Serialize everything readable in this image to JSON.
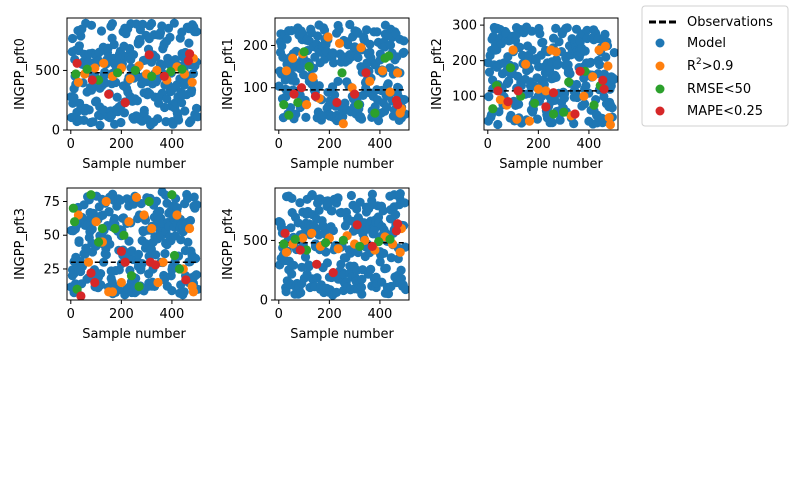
{
  "colors": {
    "observations": "#000000",
    "model": "#1f77b4",
    "r2": "#ff7f0e",
    "rmse": "#2ca02c",
    "mape": "#d62728"
  },
  "legend": {
    "entries": [
      {
        "key": "observations",
        "label": "Observations",
        "marker": "dashed-line"
      },
      {
        "key": "model",
        "label": "Model",
        "marker": "dot"
      },
      {
        "key": "r2",
        "label_main": "R",
        "label_sup": "2",
        "label_rest": ">0.9",
        "marker": "dot"
      },
      {
        "key": "rmse",
        "label": "RMSE<50",
        "marker": "dot"
      },
      {
        "key": "mape",
        "label": "MAPE<0.25",
        "marker": "dot"
      }
    ]
  },
  "chart_data": [
    {
      "type": "scatter",
      "ylabel": "INGPP_pft0",
      "xlabel": "Sample number",
      "xlim": [
        -15,
        515
      ],
      "ylim": [
        0,
        940
      ],
      "xticks": [
        0,
        200,
        400
      ],
      "yticks": [
        0,
        500
      ],
      "observation": 480,
      "model": {
        "n": 260,
        "seed": 11,
        "ymin": 40,
        "ymax": 900
      },
      "r2": [
        [
          30,
          400
        ],
        [
          55,
          470
        ],
        [
          95,
          520
        ],
        [
          130,
          560
        ],
        [
          165,
          450
        ],
        [
          200,
          520
        ],
        [
          235,
          430
        ],
        [
          270,
          540
        ],
        [
          300,
          470
        ],
        [
          340,
          500
        ],
        [
          380,
          420
        ],
        [
          420,
          530
        ],
        [
          450,
          470
        ],
        [
          480,
          400
        ],
        [
          485,
          600
        ]
      ],
      "rmse": [
        [
          20,
          470
        ],
        [
          65,
          510
        ],
        [
          110,
          420
        ],
        [
          185,
          480
        ],
        [
          255,
          500
        ],
        [
          320,
          450
        ],
        [
          395,
          490
        ],
        [
          440,
          510
        ]
      ],
      "mape": [
        [
          25,
          560
        ],
        [
          85,
          420
        ],
        [
          150,
          300
        ],
        [
          215,
          230
        ],
        [
          310,
          630
        ],
        [
          370,
          450
        ],
        [
          465,
          580
        ],
        [
          470,
          640
        ]
      ]
    },
    {
      "type": "scatter",
      "ylabel": "INGPP_pft1",
      "xlabel": "Sample number",
      "xlim": [
        -15,
        515
      ],
      "ylim": [
        0,
        265
      ],
      "xticks": [
        0,
        200,
        400
      ],
      "yticks": [
        100,
        200
      ],
      "observation": 95,
      "model": {
        "n": 260,
        "seed": 23,
        "ymin": 20,
        "ymax": 250
      },
      "r2": [
        [
          30,
          140
        ],
        [
          55,
          170
        ],
        [
          95,
          180
        ],
        [
          135,
          125
        ],
        [
          160,
          75
        ],
        [
          195,
          220
        ],
        [
          240,
          205
        ],
        [
          255,
          15
        ],
        [
          290,
          100
        ],
        [
          325,
          195
        ],
        [
          360,
          115
        ],
        [
          410,
          140
        ],
        [
          440,
          90
        ],
        [
          470,
          135
        ],
        [
          485,
          50
        ],
        [
          480,
          40
        ],
        [
          110,
          60
        ]
      ],
      "rmse": [
        [
          20,
          60
        ],
        [
          40,
          35
        ],
        [
          75,
          65
        ],
        [
          100,
          185
        ],
        [
          120,
          150
        ],
        [
          250,
          135
        ],
        [
          315,
          60
        ],
        [
          380,
          40
        ],
        [
          420,
          170
        ],
        [
          435,
          175
        ]
      ],
      "mape": [
        [
          60,
          85
        ],
        [
          90,
          100
        ],
        [
          145,
          80
        ],
        [
          230,
          65
        ],
        [
          300,
          85
        ],
        [
          345,
          135
        ],
        [
          465,
          70
        ],
        [
          470,
          60
        ]
      ]
    },
    {
      "type": "scatter",
      "ylabel": "INGPP_pft2",
      "xlabel": "Sample number",
      "xlim": [
        -15,
        515
      ],
      "ylim": [
        5,
        320
      ],
      "xticks": [
        0,
        200,
        400
      ],
      "yticks": [
        100,
        200,
        300
      ],
      "observation": 115,
      "model": {
        "n": 260,
        "seed": 37,
        "ymin": 20,
        "ymax": 295
      },
      "r2": [
        [
          50,
          90
        ],
        [
          75,
          75
        ],
        [
          100,
          230
        ],
        [
          115,
          35
        ],
        [
          150,
          190
        ],
        [
          165,
          30
        ],
        [
          200,
          120
        ],
        [
          230,
          115
        ],
        [
          250,
          230
        ],
        [
          270,
          225
        ],
        [
          330,
          45
        ],
        [
          380,
          100
        ],
        [
          415,
          155
        ],
        [
          440,
          230
        ],
        [
          465,
          240
        ],
        [
          475,
          185
        ],
        [
          480,
          40
        ],
        [
          485,
          20
        ]
      ],
      "rmse": [
        [
          20,
          65
        ],
        [
          35,
          130
        ],
        [
          90,
          180
        ],
        [
          130,
          100
        ],
        [
          185,
          80
        ],
        [
          260,
          50
        ],
        [
          300,
          55
        ],
        [
          320,
          140
        ],
        [
          385,
          170
        ],
        [
          420,
          75
        ],
        [
          445,
          130
        ]
      ],
      "mape": [
        [
          40,
          115
        ],
        [
          80,
          85
        ],
        [
          120,
          115
        ],
        [
          230,
          70
        ],
        [
          260,
          110
        ],
        [
          345,
          50
        ],
        [
          365,
          170
        ],
        [
          455,
          145
        ],
        [
          460,
          120
        ]
      ]
    },
    {
      "type": "scatter",
      "ylabel": "INGPP_pft3",
      "xlabel": "Sample number",
      "xlim": [
        -15,
        515
      ],
      "ylim": [
        2,
        85
      ],
      "xticks": [
        0,
        200,
        400
      ],
      "yticks": [
        25,
        50,
        75
      ],
      "observation": 30,
      "model": {
        "n": 260,
        "seed": 53,
        "ymin": 5,
        "ymax": 82
      },
      "r2": [
        [
          30,
          65
        ],
        [
          70,
          30
        ],
        [
          100,
          60
        ],
        [
          125,
          45
        ],
        [
          140,
          75
        ],
        [
          150,
          8
        ],
        [
          165,
          8
        ],
        [
          200,
          15
        ],
        [
          230,
          60
        ],
        [
          260,
          78
        ],
        [
          290,
          65
        ],
        [
          320,
          55
        ],
        [
          345,
          15
        ],
        [
          365,
          30
        ],
        [
          420,
          65
        ],
        [
          445,
          25
        ],
        [
          470,
          55
        ],
        [
          480,
          12
        ],
        [
          485,
          8
        ]
      ],
      "rmse": [
        [
          10,
          70
        ],
        [
          15,
          60
        ],
        [
          25,
          10
        ],
        [
          80,
          80
        ],
        [
          110,
          45
        ],
        [
          125,
          55
        ],
        [
          175,
          55
        ],
        [
          210,
          50
        ],
        [
          240,
          20
        ],
        [
          270,
          12
        ],
        [
          310,
          75
        ],
        [
          400,
          80
        ],
        [
          410,
          35
        ],
        [
          430,
          25
        ]
      ],
      "mape": [
        [
          40,
          5
        ],
        [
          80,
          22
        ],
        [
          95,
          15
        ],
        [
          200,
          38
        ],
        [
          215,
          30
        ],
        [
          315,
          30
        ],
        [
          335,
          28
        ],
        [
          455,
          17
        ]
      ]
    },
    {
      "type": "scatter",
      "ylabel": "INGPP_pft4",
      "xlabel": "Sample number",
      "xlim": [
        -15,
        515
      ],
      "ylim": [
        0,
        940
      ],
      "xticks": [
        0,
        200,
        400
      ],
      "yticks": [
        0,
        500
      ],
      "observation": 480,
      "model": {
        "n": 260,
        "seed": 71,
        "ymin": 40,
        "ymax": 900
      },
      "r2": [
        [
          30,
          400
        ],
        [
          55,
          470
        ],
        [
          95,
          520
        ],
        [
          130,
          560
        ],
        [
          165,
          450
        ],
        [
          200,
          520
        ],
        [
          235,
          430
        ],
        [
          270,
          540
        ],
        [
          300,
          470
        ],
        [
          340,
          500
        ],
        [
          380,
          420
        ],
        [
          420,
          530
        ],
        [
          450,
          470
        ],
        [
          480,
          400
        ],
        [
          485,
          600
        ]
      ],
      "rmse": [
        [
          20,
          470
        ],
        [
          65,
          510
        ],
        [
          110,
          420
        ],
        [
          185,
          480
        ],
        [
          255,
          500
        ],
        [
          320,
          450
        ],
        [
          395,
          490
        ],
        [
          440,
          510
        ]
      ],
      "mape": [
        [
          25,
          560
        ],
        [
          85,
          420
        ],
        [
          150,
          300
        ],
        [
          215,
          230
        ],
        [
          310,
          630
        ],
        [
          370,
          450
        ],
        [
          465,
          580
        ],
        [
          470,
          640
        ]
      ]
    }
  ]
}
